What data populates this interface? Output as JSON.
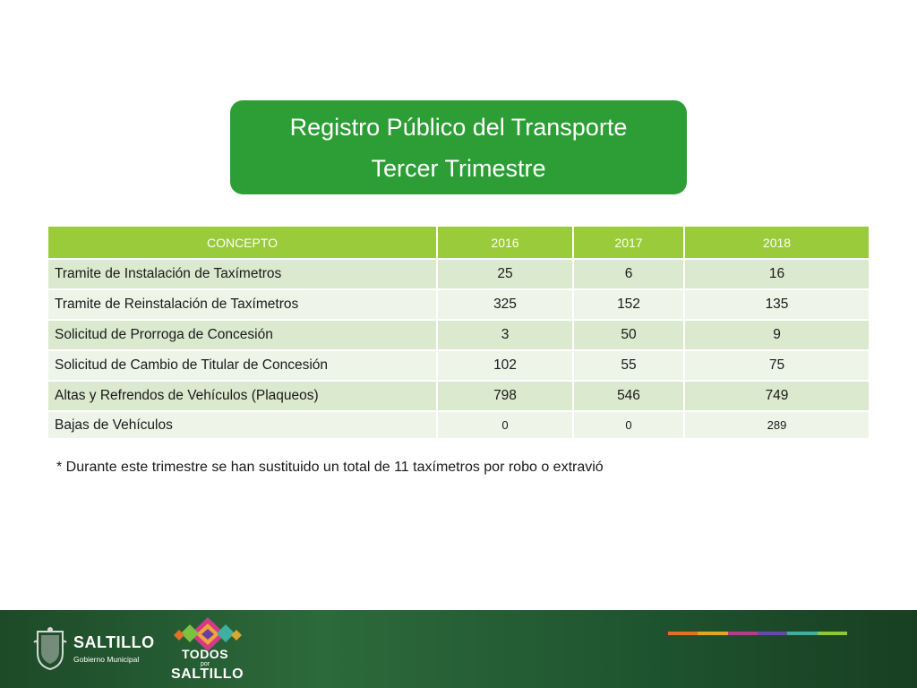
{
  "header": {
    "title_line1": "Registro Público del Transporte",
    "title_line2": "Tercer Trimestre"
  },
  "table": {
    "columns": [
      "CONCEPTO",
      "2016",
      "2017",
      "2018"
    ],
    "rows": [
      {
        "concept": "Tramite de Instalación de Taxímetros",
        "y2016": "25",
        "y2017": "6",
        "y2018": "16"
      },
      {
        "concept": "Tramite de Reinstalación de Taxímetros",
        "y2016": "325",
        "y2017": "152",
        "y2018": "135"
      },
      {
        "concept": "Solicitud de Prorroga de Concesión",
        "y2016": "3",
        "y2017": "50",
        "y2018": "9"
      },
      {
        "concept": "Solicitud de Cambio de Titular de Concesión",
        "y2016": "102",
        "y2017": "55",
        "y2018": "75"
      },
      {
        "concept": "Altas y Refrendos de Vehículos (Plaqueos)",
        "y2016": "798",
        "y2017": "546",
        "y2018": "749"
      },
      {
        "concept": "Bajas de Vehículos",
        "y2016": "0",
        "y2017": "0",
        "y2018": "289"
      }
    ]
  },
  "footnote": "* Durante este trimestre se han sustituido un total de 11  taxímetros por robo o extravió",
  "footer": {
    "logo1_name": "SALTILLO",
    "logo1_sub": "Gobierno Municipal",
    "logo2_todos": "TODOS",
    "logo2_por": "por",
    "logo2_saltillo": "SALTILLO",
    "strip_colors": [
      "#e0702a",
      "#d9a72a",
      "#b13f8e",
      "#6a4aa0",
      "#3fb0a0",
      "#8cc63f"
    ]
  },
  "colors": {
    "title_green": "#2d9e35",
    "header_green": "#9acb3a",
    "row_dark": "#dbe9cf",
    "row_light": "#eef4e8"
  }
}
